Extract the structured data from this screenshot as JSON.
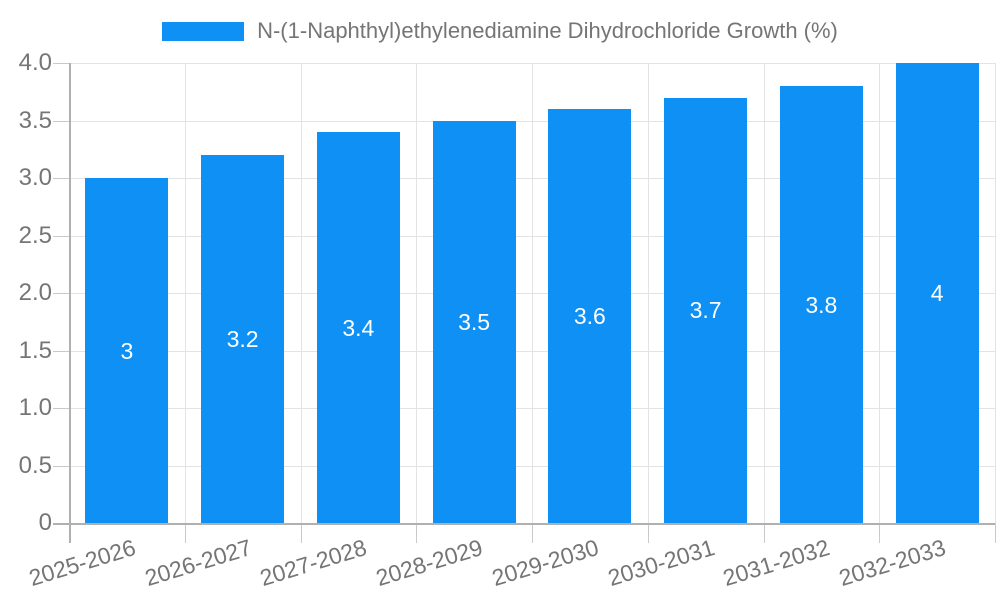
{
  "legend": {
    "label": "N-(1-Naphthyl)ethylenediamine Dihydrochloride Growth (%)",
    "swatch_icon": "legend-swatch"
  },
  "colors": {
    "bar": "#0e90f5",
    "grid": "#e3e3e3",
    "axis": "#b0b0b0",
    "tick": "#c9c9c9",
    "label_text": "#757575",
    "value_text": "#ffffff",
    "background": "#ffffff"
  },
  "chart_data": {
    "type": "bar",
    "title": "N-(1-Naphthyl)ethylenediamine Dihydrochloride Growth (%)",
    "xlabel": "",
    "ylabel": "",
    "categories": [
      "2025-2026",
      "2026-2027",
      "2027-2028",
      "2028-2029",
      "2029-2030",
      "2030-2031",
      "2031-2032",
      "2032-2033"
    ],
    "values": [
      3,
      3.2,
      3.4,
      3.5,
      3.6,
      3.7,
      3.8,
      4
    ],
    "value_labels": [
      "3",
      "3.2",
      "3.4",
      "3.5",
      "3.6",
      "3.7",
      "3.8",
      "4"
    ],
    "ylim": [
      0,
      4
    ],
    "yticks": [
      0,
      0.5,
      1.0,
      1.5,
      2.0,
      2.5,
      3.0,
      3.5,
      4.0
    ],
    "ytick_labels": [
      "0",
      "0.5",
      "1.0",
      "1.5",
      "2.0",
      "2.5",
      "3.0",
      "3.5",
      "4.0"
    ],
    "grid": true,
    "legend_position": "top-center",
    "bar_labels_inside": true,
    "xtick_rotation_deg": -17
  }
}
